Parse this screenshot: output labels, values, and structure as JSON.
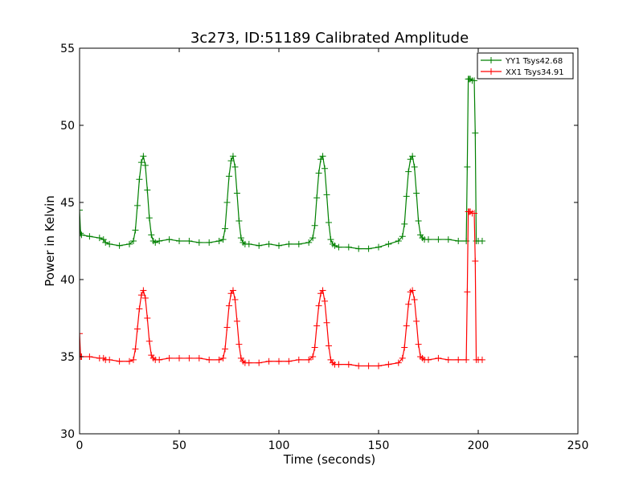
{
  "chart_data": {
    "type": "line",
    "title": "3c273, ID:51189 Calibrated Amplitude",
    "xlabel": "Time (seconds)",
    "ylabel": "Power in Kelvin",
    "xlim": [
      0,
      250
    ],
    "ylim": [
      30,
      55
    ],
    "xticks": [
      0,
      50,
      100,
      150,
      200,
      250
    ],
    "yticks": [
      30,
      35,
      40,
      45,
      50,
      55
    ],
    "grid": false,
    "legend_position": "top-right",
    "series": [
      {
        "name": "YY1 Tsys42.68",
        "color": "#008000",
        "marker": "+",
        "x": [
          0,
          0.5,
          1,
          5,
          10,
          12,
          13,
          15,
          20,
          25,
          27,
          28,
          29,
          30,
          31,
          32,
          33,
          34,
          35,
          36,
          37,
          38,
          40,
          45,
          50,
          55,
          60,
          65,
          70,
          72,
          73,
          74,
          75,
          76,
          77,
          78,
          79,
          80,
          81,
          82,
          83,
          85,
          90,
          95,
          100,
          105,
          110,
          115,
          117,
          118,
          119,
          120,
          121,
          122,
          123,
          124,
          125,
          126,
          127,
          128,
          130,
          135,
          140,
          145,
          150,
          155,
          160,
          162,
          163,
          164,
          165,
          166,
          167,
          168,
          169,
          170,
          171,
          172,
          173,
          175,
          180,
          185,
          190,
          194,
          194.5,
          195,
          195.5,
          196,
          197,
          198,
          198.5,
          199,
          200,
          202
        ],
        "y": [
          44.5,
          43,
          42.9,
          42.8,
          42.7,
          42.6,
          42.4,
          42.3,
          42.2,
          42.3,
          42.5,
          43.2,
          44.8,
          46.5,
          47.6,
          48.0,
          47.4,
          45.8,
          44.0,
          42.9,
          42.5,
          42.4,
          42.5,
          42.6,
          42.5,
          42.5,
          42.4,
          42.4,
          42.5,
          42.6,
          43.3,
          45.0,
          46.7,
          47.7,
          48.0,
          47.3,
          45.6,
          43.8,
          42.7,
          42.4,
          42.3,
          42.3,
          42.2,
          42.3,
          42.2,
          42.3,
          42.3,
          42.4,
          42.7,
          43.5,
          45.3,
          46.9,
          47.8,
          48.0,
          47.2,
          45.5,
          43.7,
          42.6,
          42.3,
          42.2,
          42.1,
          42.1,
          42.0,
          42.0,
          42.1,
          42.3,
          42.5,
          42.8,
          43.6,
          45.4,
          47.0,
          47.8,
          48.0,
          47.3,
          45.6,
          43.8,
          42.9,
          42.7,
          42.6,
          42.6,
          42.6,
          42.6,
          42.5,
          42.5,
          47.3,
          53.0,
          53.0,
          53.0,
          52.9,
          52.9,
          49.5,
          42.5,
          42.5,
          42.5
        ]
      },
      {
        "name": "XX1 Tsys34.91",
        "color": "#ff0000",
        "marker": "+",
        "x": [
          0,
          0.5,
          1,
          5,
          10,
          12,
          13,
          15,
          20,
          25,
          27,
          28,
          29,
          30,
          31,
          32,
          33,
          34,
          35,
          36,
          37,
          38,
          40,
          45,
          50,
          55,
          60,
          65,
          70,
          72,
          73,
          74,
          75,
          76,
          77,
          78,
          79,
          80,
          81,
          82,
          83,
          85,
          90,
          95,
          100,
          105,
          110,
          115,
          117,
          118,
          119,
          120,
          121,
          122,
          123,
          124,
          125,
          126,
          127,
          128,
          130,
          135,
          140,
          145,
          150,
          155,
          160,
          162,
          163,
          164,
          165,
          166,
          167,
          168,
          169,
          170,
          171,
          172,
          173,
          175,
          180,
          185,
          190,
          194,
          194.5,
          195,
          195.5,
          196,
          197,
          198,
          198.5,
          199,
          200,
          202
        ],
        "y": [
          36.5,
          35.0,
          35.0,
          35.0,
          34.9,
          34.9,
          34.8,
          34.8,
          34.7,
          34.7,
          34.8,
          35.5,
          36.8,
          38.1,
          39.0,
          39.3,
          38.8,
          37.5,
          36.0,
          35.1,
          34.9,
          34.8,
          34.8,
          34.9,
          34.9,
          34.9,
          34.9,
          34.8,
          34.8,
          34.9,
          35.5,
          36.9,
          38.3,
          39.1,
          39.3,
          38.7,
          37.3,
          35.8,
          34.9,
          34.7,
          34.6,
          34.6,
          34.6,
          34.7,
          34.7,
          34.7,
          34.8,
          34.8,
          35.0,
          35.6,
          37.0,
          38.3,
          39.1,
          39.3,
          38.6,
          37.2,
          35.7,
          34.8,
          34.6,
          34.5,
          34.5,
          34.5,
          34.4,
          34.4,
          34.4,
          34.5,
          34.6,
          34.9,
          35.6,
          37.0,
          38.4,
          39.2,
          39.3,
          38.7,
          37.3,
          35.8,
          35.0,
          34.9,
          34.8,
          34.8,
          34.9,
          34.8,
          34.8,
          34.8,
          39.2,
          44.4,
          44.4,
          44.4,
          44.3,
          44.3,
          41.2,
          34.8,
          34.8,
          34.8
        ]
      }
    ]
  }
}
